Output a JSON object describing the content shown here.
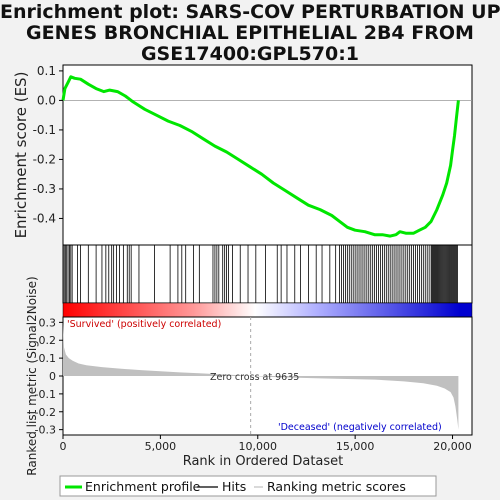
{
  "title": {
    "lines": [
      "Enrichment plot: SARS-COV PERTURBATION UP",
      "GENES BRONCHIAL EPITHELIAL 2B4 FROM",
      "GSE17400:GPL570:1"
    ]
  },
  "annotations": {
    "positive_label": "'Survived' (positively correlated)",
    "negative_label": "'Deceased' (negatively correlated)",
    "zero_cross": "Zero cross at 9635"
  },
  "legend": {
    "items": [
      {
        "label": "Enrichment profile",
        "color": "#00e600",
        "kind": "thick-line"
      },
      {
        "label": "Hits",
        "color": "#000000",
        "kind": "thin-line"
      },
      {
        "label": "Ranking metric scores",
        "color": "#c0c0c0",
        "kind": "thin-line"
      }
    ]
  },
  "colors": {
    "es_curve": "#00e600",
    "hits": "#000000",
    "metric_fill": "#c0c0c0",
    "positive_label": "#cc0000",
    "negative_label": "#0000cc",
    "panel_bg": "#ffffff"
  },
  "chart_data": [
    {
      "type": "line",
      "name": "enrichment-profile",
      "ylabel": "Enrichment score (ES)",
      "xlim": [
        0,
        21000
      ],
      "ylim": [
        -0.49,
        0.12
      ],
      "yticks": [
        0.1,
        0.0,
        -0.1,
        -0.2,
        -0.3,
        -0.4
      ],
      "ytick_labels": [
        "0.1",
        "0.0",
        "-0.1",
        "-0.2",
        "-0.3",
        "-0.4"
      ],
      "grid": false,
      "series": [
        {
          "x": [
            0,
            100,
            250,
            400,
            600,
            900,
            1300,
            1700,
            2100,
            2400,
            2800,
            3200,
            3600,
            4200,
            4800,
            5400,
            6000,
            6600,
            7200,
            7800,
            8400,
            9000,
            9600,
            10200,
            10800,
            11400,
            12000,
            12600,
            13200,
            13800,
            14200,
            14600,
            15000,
            15500,
            16000,
            16400,
            16800,
            17100,
            17300,
            17600,
            18000,
            18300,
            18600,
            18900,
            19200,
            19500,
            19700,
            19900,
            20000,
            20100,
            20200,
            20300
          ],
          "values": [
            0.0,
            0.04,
            0.06,
            0.08,
            0.075,
            0.072,
            0.055,
            0.04,
            0.03,
            0.035,
            0.03,
            0.015,
            -0.005,
            -0.03,
            -0.05,
            -0.07,
            -0.085,
            -0.105,
            -0.13,
            -0.155,
            -0.175,
            -0.2,
            -0.225,
            -0.25,
            -0.28,
            -0.305,
            -0.33,
            -0.355,
            -0.37,
            -0.39,
            -0.41,
            -0.43,
            -0.44,
            -0.445,
            -0.455,
            -0.455,
            -0.46,
            -0.455,
            -0.445,
            -0.45,
            -0.45,
            -0.44,
            -0.43,
            -0.41,
            -0.37,
            -0.32,
            -0.28,
            -0.22,
            -0.17,
            -0.12,
            -0.06,
            0.0
          ]
        }
      ]
    },
    {
      "type": "hits",
      "name": "hit-positions",
      "xlim": [
        0,
        21000
      ],
      "x": [
        60,
        120,
        190,
        260,
        330,
        400,
        470,
        750,
        900,
        1300,
        1700,
        2000,
        2200,
        2350,
        2500,
        2600,
        2750,
        2900,
        3100,
        3300,
        3400,
        3500,
        3900,
        4700,
        5500,
        5900,
        6100,
        6300,
        6700,
        7000,
        7700,
        7800,
        7900,
        8000,
        8200,
        8300,
        8400,
        8500,
        8700,
        9100,
        9500,
        9900,
        10400,
        11000,
        11200,
        11500,
        11900,
        12200,
        12600,
        13000,
        13300,
        13700,
        14000,
        14200,
        14300,
        14400,
        14500,
        14600,
        14700,
        14800,
        14900,
        15000,
        15100,
        15200,
        15300,
        15400,
        15500,
        15600,
        15700,
        15800,
        15900,
        16000,
        16100,
        16200,
        16300,
        16400,
        16500,
        16600,
        16700,
        16800,
        16900,
        17000,
        17100,
        17200,
        17300,
        17400,
        17500,
        17600,
        17700,
        17800,
        17900,
        18000,
        18100,
        18200,
        18300,
        18400,
        18500,
        18600,
        18700,
        18800,
        18900,
        18950,
        19000,
        19050,
        19100,
        19150,
        19200,
        19250,
        19300,
        19350,
        19400,
        19450,
        19500,
        19550,
        19600,
        19650,
        19700,
        19750,
        19800,
        19850,
        19900,
        19950,
        20000,
        20050,
        20100,
        20150,
        20200,
        20250
      ]
    },
    {
      "type": "area",
      "name": "ranked-list-metric",
      "ylabel": "Ranked list metric (Signal2Noise)",
      "xlabel": "Rank in Ordered Dataset",
      "xlim": [
        0,
        21000
      ],
      "ylim": [
        -0.33,
        0.33
      ],
      "xticks": [
        0,
        5000,
        10000,
        15000,
        20000
      ],
      "xtick_labels": [
        "0",
        "5,000",
        "10,000",
        "15,000",
        "20,000"
      ],
      "yticks": [
        0.3,
        0.2,
        0.1,
        0.0,
        -0.1,
        -0.2,
        -0.3
      ],
      "ytick_labels": [
        "0.3",
        "0.2",
        "0.1",
        "0",
        "-0.1",
        "-0.2",
        "-0.3"
      ],
      "zero_cross": 9635,
      "series": [
        {
          "x": [
            0,
            50,
            150,
            300,
            500,
            800,
            1200,
            2000,
            3000,
            4000,
            5000,
            6000,
            7000,
            8000,
            9000,
            9635,
            10500,
            12000,
            14000,
            16000,
            17500,
            18500,
            19200,
            19600,
            19900,
            20050,
            20150,
            20250,
            20300
          ],
          "values": [
            0.3,
            0.16,
            0.12,
            0.1,
            0.085,
            0.07,
            0.06,
            0.05,
            0.04,
            0.033,
            0.027,
            0.02,
            0.015,
            0.01,
            0.005,
            0.0,
            -0.005,
            -0.01,
            -0.015,
            -0.02,
            -0.03,
            -0.04,
            -0.055,
            -0.07,
            -0.09,
            -0.12,
            -0.17,
            -0.25,
            -0.3
          ]
        }
      ]
    }
  ]
}
